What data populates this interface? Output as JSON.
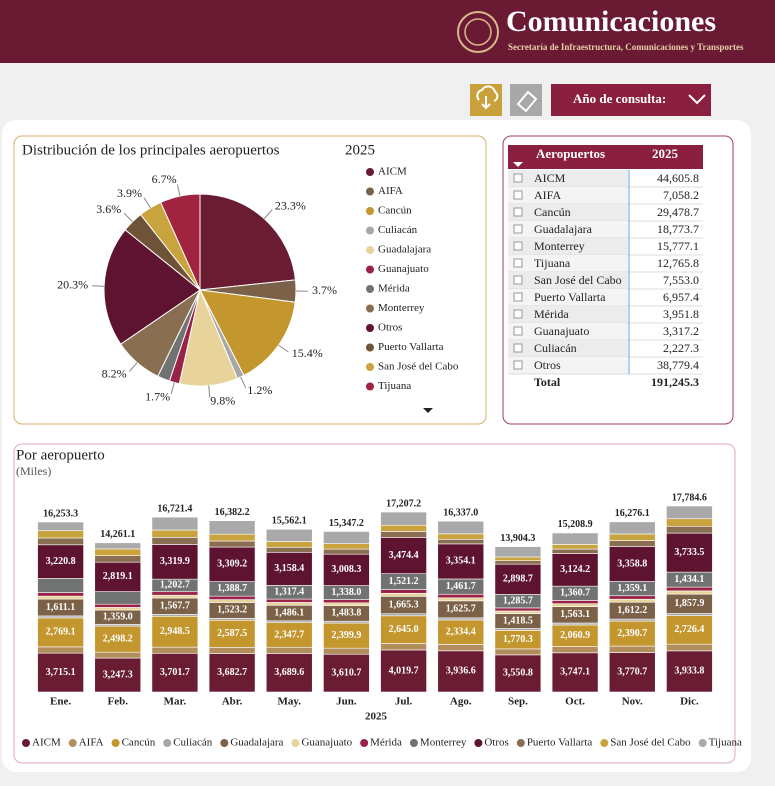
{
  "header": {
    "title": "Comunicaciones",
    "subtitle": "Secretaría de Infraestructura, Comunicaciones y Transportes"
  },
  "toolbar": {
    "filter_label": "Año de consulta:"
  },
  "table": {
    "columns": [
      "Aeropuertos",
      "2025"
    ],
    "rows": [
      [
        "AICM",
        "44,605.8"
      ],
      [
        "AIFA",
        "7,058.2"
      ],
      [
        "Cancún",
        "29,478.7"
      ],
      [
        "Guadalajara",
        "18,773.7"
      ],
      [
        "Monterrey",
        "15,777.1"
      ],
      [
        "Tijuana",
        "12,765.8"
      ],
      [
        "San José del Cabo",
        "7,553.0"
      ],
      [
        "Puerto Vallarta",
        "6,957.4"
      ],
      [
        "Mérida",
        "3,951.8"
      ],
      [
        "Guanajuato",
        "3,317.2"
      ],
      [
        "Culiacán",
        "2,227.3"
      ],
      [
        "Otros",
        "38,779.4"
      ]
    ],
    "total": [
      "Total",
      "191,245.3"
    ]
  },
  "chart_data": [
    {
      "type": "pie",
      "title": "Distribución de los principales aeropuertos",
      "subtitle": "2025",
      "categories": [
        "AICM",
        "AIFA",
        "Cancún",
        "Culiacán",
        "Guadalajara",
        "Guanajuato",
        "Mérida",
        "Monterrey",
        "Otros",
        "Puerto Vallarta",
        "San José del Cabo",
        "Tijuana"
      ],
      "values": [
        23.3,
        3.7,
        15.4,
        1.2,
        9.8,
        1.7,
        2.1,
        8.2,
        20.3,
        3.6,
        3.9,
        6.7
      ],
      "value_labels": [
        "23.3%",
        "3.7%",
        "15.4%",
        "1.2%",
        "9.8%",
        "1.7%",
        null,
        "8.2%",
        "20.3%",
        "3.6%",
        "3.9%",
        "6.7%"
      ],
      "colors": [
        "#691c32",
        "#7b6147",
        "#c3962e",
        "#a7a7a7",
        "#e8d49b",
        "#9b2247",
        "#707372",
        "#8a6e52",
        "#5e1430",
        "#6e5338",
        "#c9a33d",
        "#a0233f"
      ]
    },
    {
      "type": "stacked_bar",
      "title": "Por aeropuerto",
      "subtitle": "(Miles)",
      "x_label": "2025",
      "categories": [
        "Ene.",
        "Feb.",
        "Mar.",
        "Abr.",
        "May.",
        "Jun.",
        "Jul.",
        "Ago.",
        "Sep.",
        "Oct.",
        "Nov.",
        "Dic."
      ],
      "totals": [
        16253.3,
        14261.1,
        16721.4,
        16382.2,
        15562.1,
        15347.2,
        17207.2,
        16337.0,
        13904.3,
        15208.9,
        16276.1,
        17784.6
      ],
      "total_labels": [
        "16,253.3",
        "14,261.1",
        "16,721.4",
        "16,382.2",
        "15,562.1",
        "15,347.2",
        "17,207.2",
        "16,337.0",
        "13,904.3",
        "15,208.9",
        "16,276.1",
        "17,784.6"
      ],
      "series": [
        {
          "name": "AICM",
          "color": "#691c32",
          "values": [
            3715.1,
            3247.3,
            3701.7,
            3682.7,
            3689.6,
            3610.7,
            4019.7,
            3936.6,
            3550.8,
            3747.1,
            3770.7,
            3933.8
          ],
          "value_labels": [
            "3,715.1",
            "3,247.3",
            "3,701.7",
            "3,682.7",
            "3,689.6",
            "3,610.7",
            "4,019.7",
            "3,936.6",
            "3,550.8",
            "3,747.1",
            "3,770.7",
            "3,933.8"
          ]
        },
        {
          "name": "AIFA",
          "color": "#b38e5d",
          "values": [
            600,
            560,
            590,
            590,
            590,
            580,
            620,
            620,
            570,
            600,
            620,
            640
          ]
        },
        {
          "name": "Cancún",
          "color": "#c3962e",
          "values": [
            2769.1,
            2498.2,
            2948.5,
            2587.5,
            2347.7,
            2399.9,
            2645.0,
            2334.4,
            1770.3,
            2060.9,
            2390.7,
            2726.4
          ],
          "value_labels": [
            "2,769.1",
            "2,498.2",
            "2,948.5",
            "2,587.5",
            "2,347.7",
            "2,399.9",
            "2,645.0",
            "2,334.4",
            "1,770.3",
            "2,060.9",
            "2,390.7",
            "2,726.4"
          ]
        },
        {
          "name": "Culiacán",
          "color": "#a7a7a7",
          "values": [
            190,
            170,
            180,
            180,
            180,
            180,
            200,
            200,
            180,
            190,
            190,
            200
          ]
        },
        {
          "name": "Guadalajara",
          "color": "#7b6147",
          "values": [
            1611.1,
            1359.0,
            1567.7,
            1523.2,
            1486.1,
            1483.8,
            1665.3,
            1625.7,
            1418.5,
            1563.1,
            1612.2,
            1857.9
          ],
          "value_labels": [
            "1,611.1",
            "1,359.0",
            "1,567.7",
            "1,523.2",
            "1,486.1",
            "1,483.8",
            "1,665.3",
            "1,625.7",
            "1,418.5",
            "1,563.1",
            "1,612.2",
            "1,857.9"
          ]
        },
        {
          "name": "Guanajuato",
          "color": "#e8d49b",
          "values": [
            280,
            250,
            270,
            270,
            270,
            270,
            290,
            290,
            260,
            280,
            290,
            310
          ]
        },
        {
          "name": "Mérida",
          "color": "#9b2247",
          "values": [
            340,
            310,
            330,
            330,
            320,
            310,
            350,
            340,
            290,
            320,
            330,
            360
          ]
        },
        {
          "name": "Monterrey",
          "color": "#707372",
          "values": [
            1350,
            1200,
            1202.7,
            1388.7,
            1317.4,
            1338.0,
            1521.2,
            1461.7,
            1285.7,
            1360.7,
            1359.1,
            1434.1
          ],
          "value_labels": [
            null,
            null,
            "1,202.7",
            "1,388.7",
            "1,317.4",
            "1,338.0",
            "1,521.2",
            "1,461.7",
            "1,285.7",
            "1,360.7",
            "1,359.1",
            "1,434.1"
          ]
        },
        {
          "name": "Otros",
          "color": "#5e1430",
          "values": [
            3220.8,
            2819.1,
            3319.9,
            3309.2,
            3158.4,
            3008.3,
            3474.4,
            3354.1,
            2898.7,
            3124.2,
            3358.8,
            3733.5
          ],
          "value_labels": [
            "3,220.8",
            "2,819.1",
            "3,319.9",
            "3,309.2",
            "3,158.4",
            "3,008.3",
            "3,474.4",
            "3,354.1",
            "2,898.7",
            "3,124.2",
            "3,358.8",
            "3,733.5"
          ]
        },
        {
          "name": "Puerto Vallarta",
          "color": "#8a6e52",
          "values": [
            650,
            620,
            680,
            580,
            480,
            480,
            560,
            440,
            330,
            420,
            560,
            650
          ]
        },
        {
          "name": "San José del Cabo",
          "color": "#c9a33d",
          "values": [
            700,
            650,
            700,
            650,
            550,
            520,
            600,
            520,
            360,
            450,
            630,
            720
          ]
        },
        {
          "name": "Tijuana",
          "color": "#a9a9a9",
          "values": [
            830,
            580,
            1230,
            1290,
            1170,
            1170,
            1260,
            1210,
            990,
            1090,
            1160,
            1220
          ]
        }
      ]
    }
  ]
}
